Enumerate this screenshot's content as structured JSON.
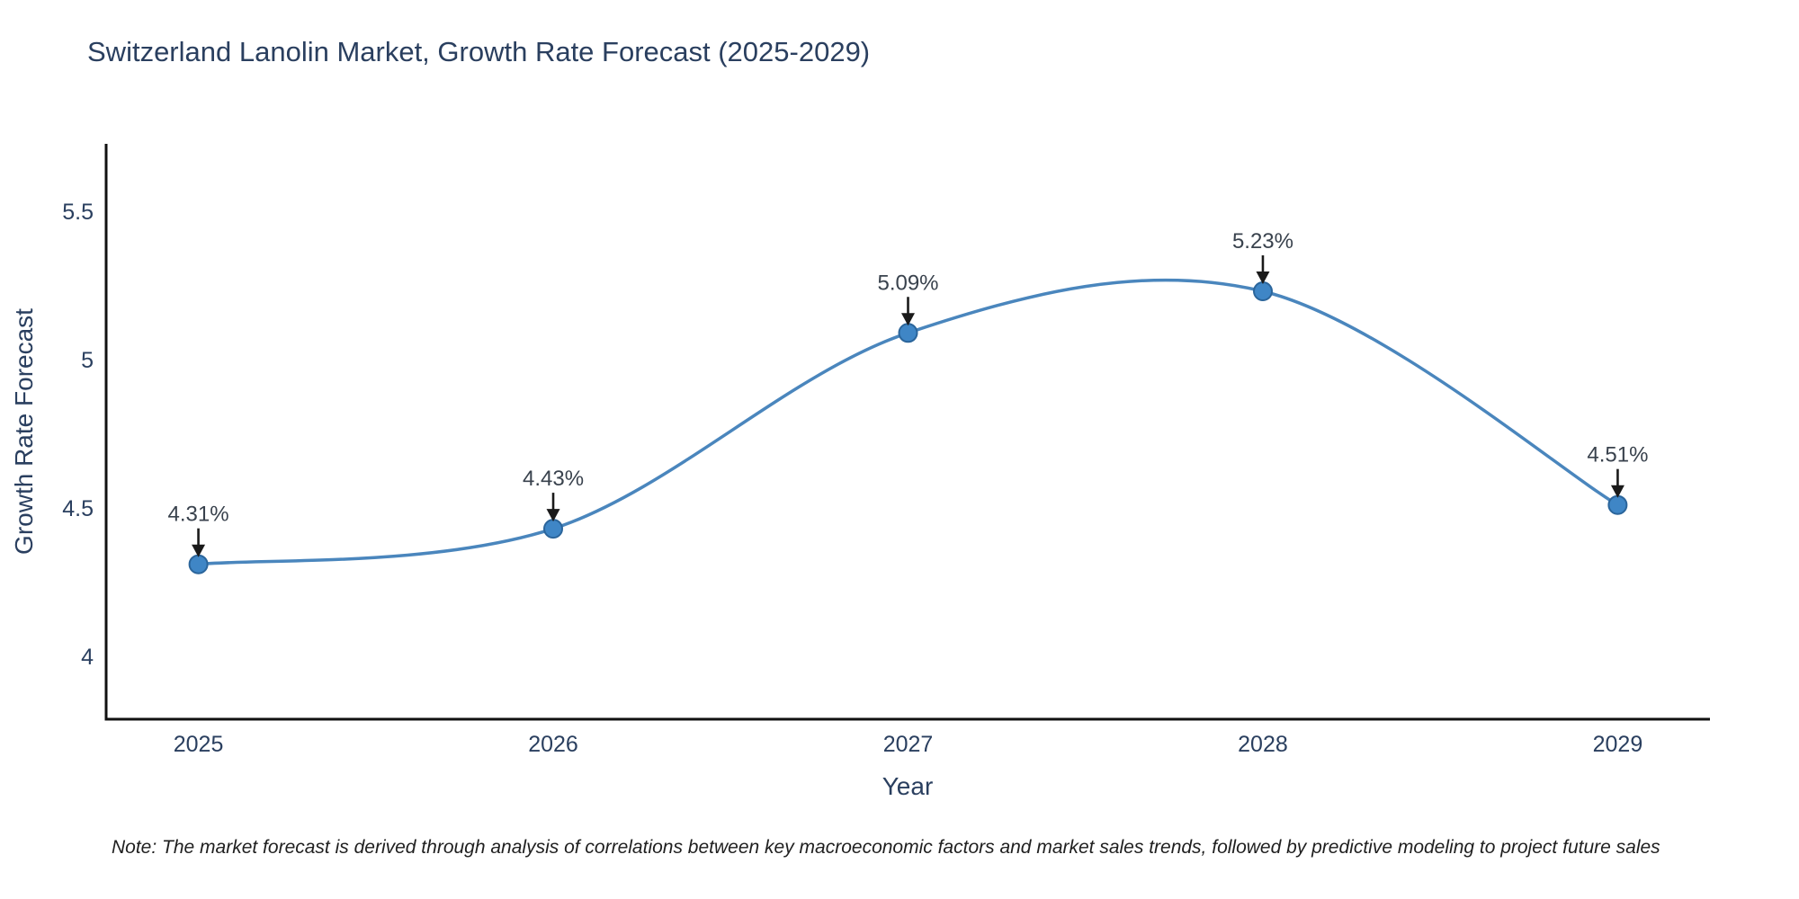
{
  "title": {
    "text": "Switzerland Lanolin Market, Growth Rate Forecast (2025-2029)"
  },
  "chart_data": {
    "type": "line",
    "line_shape": "spline",
    "title": "Switzerland Lanolin Market, Growth Rate Forecast (2025-2029)",
    "x": [
      2025,
      2026,
      2027,
      2028,
      2029
    ],
    "categories": [
      "2025",
      "2026",
      "2027",
      "2028",
      "2029"
    ],
    "series": [
      {
        "name": "Growth Rate Forecast",
        "values": [
          4.31,
          4.43,
          5.09,
          5.23,
          4.51
        ]
      }
    ],
    "point_labels": [
      "4.31%",
      "4.43%",
      "5.09%",
      "5.23%",
      "4.51%"
    ],
    "xlabel": "Year",
    "ylabel": "Growth Rate Forecast",
    "yticks": [
      4,
      4.5,
      5,
      5.5
    ],
    "ytick_labels": [
      "4",
      "4.5",
      "5",
      "5.5"
    ],
    "ylim": [
      3.788,
      5.727
    ],
    "xlim": [
      2024.74,
      2029.26
    ],
    "grid": false,
    "legend": "none",
    "annotation_arrows": "down-to-point"
  },
  "note": {
    "text": "Note: The market forecast is derived through analysis of correlations between key macroeconomic factors and market sales trends, followed by predictive modeling to project future sales"
  },
  "colors": {
    "background": "#ffffff",
    "text": "#2a3f5f",
    "annotation_text": "#39424d",
    "line": "#4a86bd",
    "marker_fill": "#3f86c6",
    "marker_stroke": "#2b659b",
    "axis_line": "#111111",
    "arrow": "#1a1a1a",
    "note_text": "#1f1f1f"
  }
}
